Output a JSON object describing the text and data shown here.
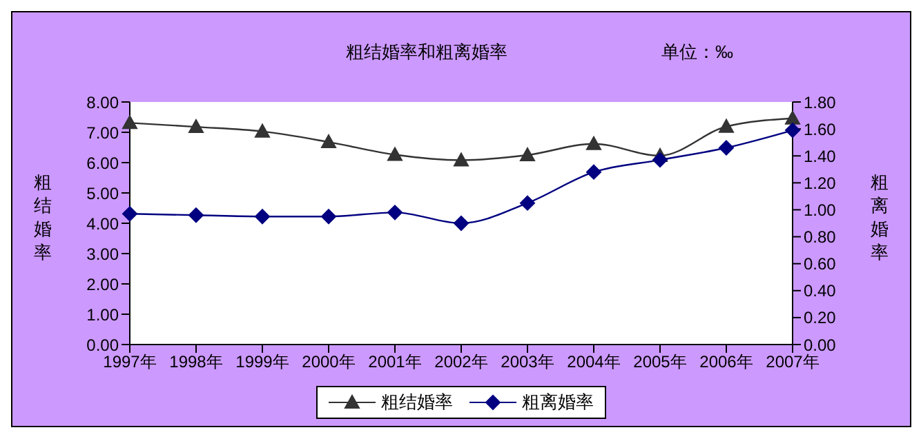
{
  "chart_data": {
    "type": "line",
    "title": "粗结婚率和粗离婚率",
    "annotations": [
      "单位：‰"
    ],
    "ylabel": "粗结婚率",
    "y2label": "粗离婚率",
    "categories": [
      "1997年",
      "1998年",
      "1999年",
      "2000年",
      "2001年",
      "2002年",
      "2003年",
      "2004年",
      "2005年",
      "2006年",
      "2007年"
    ],
    "series": [
      {
        "name": "粗结婚率",
        "color": "#333333",
        "marker": "triangle",
        "values": [
          7.31,
          7.18,
          7.03,
          6.68,
          6.26,
          6.08,
          6.25,
          6.62,
          6.23,
          7.19,
          7.46
        ]
      },
      {
        "name": "粗离婚率",
        "color": "#000080",
        "marker": "diamond",
        "axis": "y2",
        "values": [
          0.97,
          0.96,
          0.95,
          0.95,
          0.98,
          0.9,
          1.05,
          1.28,
          1.37,
          1.46,
          1.59
        ]
      }
    ],
    "ylim": [
      0,
      8
    ],
    "yticks": [
      {
        "value": 0,
        "label": "0.00"
      },
      {
        "value": 1,
        "label": "1.00"
      },
      {
        "value": 2,
        "label": "2.00"
      },
      {
        "value": 3,
        "label": "3.00"
      },
      {
        "value": 4,
        "label": "4.00"
      },
      {
        "value": 5,
        "label": "5.00"
      },
      {
        "value": 6,
        "label": "6.00"
      },
      {
        "value": 7,
        "label": "7.00"
      },
      {
        "value": 8,
        "label": "8.00"
      }
    ],
    "y2lim": [
      0,
      1.8
    ],
    "y2ticks": [
      {
        "value": 0,
        "label": "0.00"
      },
      {
        "value": 0.2,
        "label": "0.20"
      },
      {
        "value": 0.4,
        "label": "0.40"
      },
      {
        "value": 0.6,
        "label": "0.60"
      },
      {
        "value": 0.8,
        "label": "0.80"
      },
      {
        "value": 1,
        "label": "1.00"
      },
      {
        "value": 1.2,
        "label": "1.20"
      },
      {
        "value": 1.4,
        "label": "1.40"
      },
      {
        "value": 1.6,
        "label": "1.60"
      },
      {
        "value": 1.8,
        "label": "1.80"
      }
    ],
    "grid": false,
    "legend": "bottom"
  }
}
